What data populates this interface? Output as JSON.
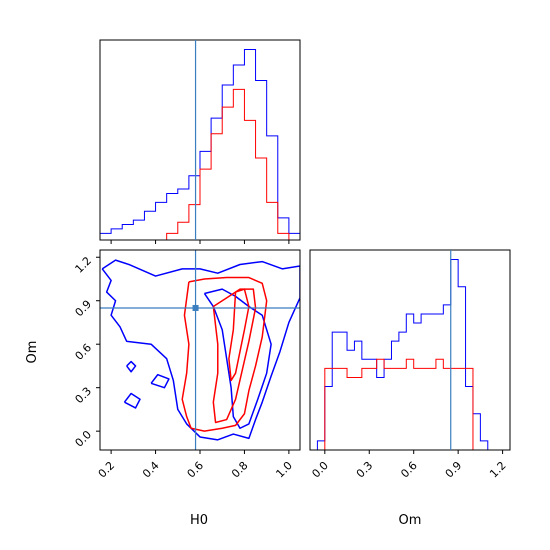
{
  "chart_data": {
    "type": "corner",
    "parameters": [
      "H0",
      "Om"
    ],
    "truths": {
      "H0": 0.58,
      "Om": 0.85
    },
    "colors": {
      "blue": "#0000ff",
      "red": "#ff0000",
      "truth": "#3a7ebf"
    },
    "panels": {
      "h0_hist": {
        "type": "step-histogram",
        "xlim": [
          0.15,
          1.05
        ],
        "bin_edges": [
          0.15,
          0.2,
          0.25,
          0.3,
          0.35,
          0.4,
          0.45,
          0.5,
          0.55,
          0.6,
          0.65,
          0.7,
          0.75,
          0.8,
          0.85,
          0.9,
          0.95,
          1.0,
          1.05
        ],
        "series": [
          {
            "color": "blue",
            "values": [
              3,
              5,
              7,
              9,
              13,
              17,
              21,
              23,
              29,
              40,
              55,
              70,
              79,
              86,
              72,
              47,
              10,
              3
            ]
          },
          {
            "color": "red",
            "values": [
              0,
              0,
              0,
              0,
              0,
              0,
              3,
              8,
              16,
              32,
              48,
              60,
              68,
              54,
              37,
              17,
              3,
              0
            ]
          }
        ],
        "x_ticks": [
          0.2,
          0.4,
          0.6,
          0.8,
          1.0
        ],
        "x_tick_labels_shown": false
      },
      "om_hist": {
        "type": "step-histogram",
        "xlim": [
          -0.1,
          1.25
        ],
        "bin_edges": [
          -0.05,
          0.0,
          0.05,
          0.1,
          0.15,
          0.2,
          0.25,
          0.3,
          0.35,
          0.4,
          0.45,
          0.5,
          0.55,
          0.6,
          0.65,
          0.7,
          0.75,
          0.8,
          0.85,
          0.9,
          0.95,
          1.0,
          1.05,
          1.1
        ],
        "series": [
          {
            "color": "blue",
            "values": [
              1,
              7,
              13,
              13,
              11,
              12,
              10,
              10,
              8,
              10,
              12,
              13,
              15,
              14,
              15,
              15,
              15,
              16,
              21,
              18,
              7,
              4,
              1
            ]
          },
          {
            "color": "red",
            "values": [
              0,
              9,
              9,
              9,
              8,
              8,
              9,
              9,
              10,
              9,
              9,
              9,
              10,
              9,
              9,
              9,
              10,
              9,
              9,
              9,
              9,
              0,
              0
            ]
          }
        ],
        "x_ticks": [
          0.0,
          0.3,
          0.6,
          0.9,
          1.2
        ],
        "x_tick_labels": [
          "0.0",
          "0.3",
          "0.6",
          "0.9",
          "1.2"
        ],
        "xlabel": "Om"
      },
      "h0_om_contour": {
        "type": "contour",
        "xlim": [
          0.15,
          1.05
        ],
        "ylim": [
          -0.13,
          1.25
        ],
        "x_ticks": [
          0.2,
          0.4,
          0.6,
          0.8,
          1.0
        ],
        "x_tick_labels": [
          "0.2",
          "0.4",
          "0.6",
          "0.8",
          "1.0"
        ],
        "y_ticks": [
          0.0,
          0.3,
          0.6,
          0.9,
          1.2
        ],
        "y_tick_labels": [
          "0.0",
          "0.3",
          "0.6",
          "0.9",
          "1.2"
        ],
        "xlabel": "H0",
        "ylabel": "Om",
        "contours": [
          {
            "color": "blue",
            "points": [
              [
                0.16,
                1.12
              ],
              [
                0.22,
                1.18
              ],
              [
                0.28,
                1.15
              ],
              [
                0.4,
                1.07
              ],
              [
                0.52,
                1.12
              ],
              [
                0.6,
                1.12
              ],
              [
                0.68,
                1.09
              ],
              [
                0.78,
                1.15
              ],
              [
                0.88,
                1.17
              ],
              [
                0.97,
                1.12
              ],
              [
                1.05,
                1.14
              ],
              [
                1.05,
                0.92
              ],
              [
                1.0,
                0.75
              ],
              [
                0.96,
                0.55
              ],
              [
                0.92,
                0.38
              ],
              [
                0.88,
                0.2
              ],
              [
                0.85,
                0.08
              ],
              [
                0.82,
                -0.05
              ],
              [
                0.75,
                -0.02
              ],
              [
                0.68,
                -0.06
              ],
              [
                0.6,
                -0.04
              ],
              [
                0.54,
                0.05
              ],
              [
                0.5,
                0.15
              ],
              [
                0.48,
                0.35
              ],
              [
                0.45,
                0.5
              ],
              [
                0.38,
                0.6
              ],
              [
                0.27,
                0.62
              ],
              [
                0.24,
                0.72
              ],
              [
                0.2,
                0.8
              ],
              [
                0.22,
                0.9
              ],
              [
                0.18,
                0.96
              ],
              [
                0.2,
                1.04
              ],
              [
                0.16,
                1.12
              ]
            ]
          },
          {
            "color": "blue",
            "points": [
              [
                0.62,
                0.95
              ],
              [
                0.7,
                0.98
              ],
              [
                0.76,
                0.93
              ],
              [
                0.82,
                0.86
              ],
              [
                0.88,
                0.8
              ],
              [
                0.92,
                0.6
              ],
              [
                0.9,
                0.4
              ],
              [
                0.86,
                0.22
              ],
              [
                0.82,
                0.05
              ],
              [
                0.78,
                0.02
              ],
              [
                0.75,
                0.1
              ],
              [
                0.74,
                0.3
              ],
              [
                0.72,
                0.5
              ],
              [
                0.7,
                0.7
              ],
              [
                0.66,
                0.86
              ],
              [
                0.62,
                0.95
              ]
            ]
          },
          {
            "color": "blue",
            "points": [
              [
                0.27,
                0.45
              ],
              [
                0.29,
                0.41
              ],
              [
                0.31,
                0.45
              ],
              [
                0.29,
                0.48
              ],
              [
                0.27,
                0.45
              ]
            ]
          },
          {
            "color": "blue",
            "points": [
              [
                0.26,
                0.2
              ],
              [
                0.31,
                0.16
              ],
              [
                0.33,
                0.22
              ],
              [
                0.29,
                0.26
              ],
              [
                0.26,
                0.2
              ]
            ]
          },
          {
            "color": "blue",
            "points": [
              [
                0.38,
                0.33
              ],
              [
                0.44,
                0.3
              ],
              [
                0.46,
                0.36
              ],
              [
                0.41,
                0.39
              ],
              [
                0.38,
                0.33
              ]
            ]
          },
          {
            "color": "red",
            "points": [
              [
                0.55,
                1.03
              ],
              [
                0.62,
                1.05
              ],
              [
                0.72,
                1.06
              ],
              [
                0.82,
                1.06
              ],
              [
                0.88,
                1.02
              ],
              [
                0.9,
                0.9
              ],
              [
                0.88,
                0.65
              ],
              [
                0.85,
                0.45
              ],
              [
                0.82,
                0.28
              ],
              [
                0.8,
                0.12
              ],
              [
                0.76,
                0.04
              ],
              [
                0.7,
                0.02
              ],
              [
                0.62,
                0.0
              ],
              [
                0.56,
                0.02
              ],
              [
                0.54,
                0.1
              ],
              [
                0.52,
                0.22
              ],
              [
                0.54,
                0.4
              ],
              [
                0.55,
                0.6
              ],
              [
                0.53,
                0.8
              ],
              [
                0.55,
                1.03
              ]
            ]
          },
          {
            "color": "red",
            "points": [
              [
                0.66,
                0.86
              ],
              [
                0.72,
                0.92
              ],
              [
                0.78,
                0.98
              ],
              [
                0.84,
                0.98
              ],
              [
                0.85,
                0.85
              ],
              [
                0.82,
                0.62
              ],
              [
                0.79,
                0.42
              ],
              [
                0.76,
                0.22
              ],
              [
                0.72,
                0.08
              ],
              [
                0.67,
                0.06
              ],
              [
                0.66,
                0.2
              ],
              [
                0.68,
                0.4
              ],
              [
                0.68,
                0.6
              ],
              [
                0.66,
                0.86
              ]
            ]
          },
          {
            "color": "red",
            "points": [
              [
                0.76,
                0.96
              ],
              [
                0.8,
                0.98
              ],
              [
                0.82,
                0.86
              ],
              [
                0.8,
                0.7
              ],
              [
                0.78,
                0.55
              ],
              [
                0.76,
                0.4
              ],
              [
                0.74,
                0.35
              ],
              [
                0.73,
                0.5
              ],
              [
                0.75,
                0.7
              ],
              [
                0.76,
                0.96
              ]
            ]
          }
        ]
      }
    }
  }
}
